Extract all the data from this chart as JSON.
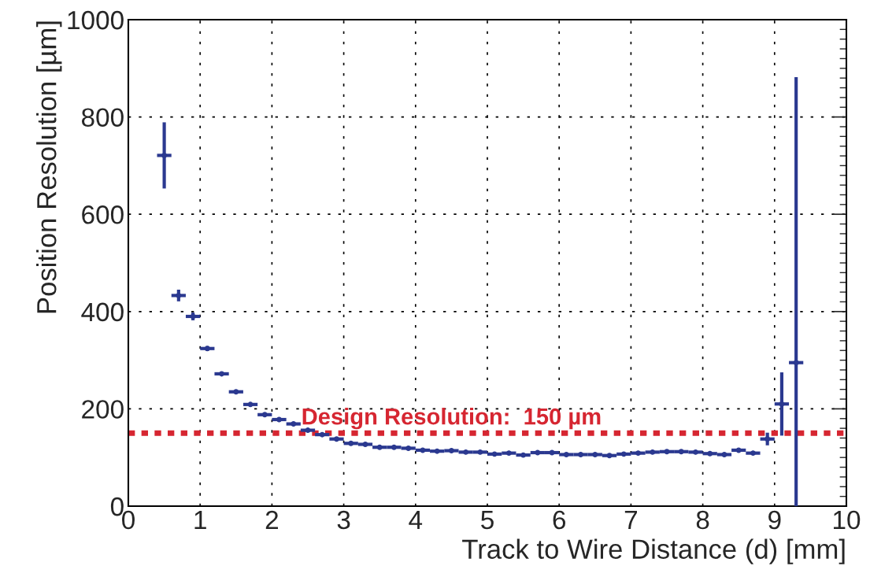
{
  "chart_data": {
    "type": "scatter",
    "xlabel": "Track to Wire Distance (d) [mm]",
    "ylabel": "Position Resolution [µm]",
    "x": [
      0.5,
      0.7,
      0.9,
      1.1,
      1.3,
      1.5,
      1.7,
      1.9,
      2.1,
      2.3,
      2.5,
      2.7,
      2.9,
      3.1,
      3.3,
      3.5,
      3.7,
      3.9,
      4.1,
      4.3,
      4.5,
      4.7,
      4.9,
      5.1,
      5.3,
      5.5,
      5.7,
      5.9,
      6.1,
      6.3,
      6.5,
      6.7,
      6.9,
      7.1,
      7.3,
      7.5,
      7.7,
      7.9,
      8.1,
      8.3,
      8.5,
      8.7,
      8.9,
      9.1,
      9.3
    ],
    "series": [
      {
        "color": "#2b3990",
        "values": [
          721,
          433,
          390,
          324,
          272,
          235,
          209,
          188,
          178,
          169,
          156,
          147,
          138,
          129,
          127,
          121,
          121,
          119,
          115,
          113,
          114,
          111,
          111,
          107,
          109,
          105,
          110,
          110,
          106,
          106,
          106,
          104,
          107,
          109,
          111,
          112,
          112,
          111,
          108,
          106,
          115,
          109,
          138,
          210,
          295
        ],
        "errors": [
          68,
          12,
          8,
          5,
          null,
          null,
          null,
          null,
          null,
          null,
          null,
          null,
          null,
          null,
          null,
          null,
          null,
          null,
          null,
          null,
          null,
          null,
          null,
          null,
          null,
          null,
          null,
          null,
          null,
          null,
          null,
          null,
          null,
          null,
          null,
          null,
          null,
          null,
          null,
          null,
          null,
          null,
          13,
          65,
          [
            0,
            882
          ]
        ],
        "xerrors": [
          0.1,
          0.1,
          0.1,
          0.1,
          0.1,
          0.1,
          0.1,
          0.1,
          0.1,
          0.1,
          0.1,
          0.1,
          0.1,
          0.1,
          0.1,
          0.1,
          0.1,
          0.1,
          0.1,
          0.1,
          0.1,
          0.1,
          0.1,
          0.1,
          0.1,
          0.1,
          0.1,
          0.1,
          0.1,
          0.1,
          0.1,
          0.1,
          0.1,
          0.1,
          0.1,
          0.1,
          0.1,
          0.1,
          0.1,
          0.1,
          0.1,
          0.1,
          0.1,
          0.1,
          0.1
        ]
      }
    ],
    "marker": "circle",
    "xlim": [
      0,
      10
    ],
    "xticks": [
      0,
      1,
      2,
      3,
      4,
      5,
      6,
      7,
      8,
      9,
      10
    ],
    "ylim": [
      0,
      1000
    ],
    "yticks": [
      0,
      200,
      400,
      600,
      800,
      1000
    ],
    "grid": true,
    "ref_lines": [
      {
        "axis": "y",
        "value": 150,
        "label": "Design Resolution:  150 µm",
        "color": "#d62631",
        "line_style": "dotted"
      }
    ]
  }
}
